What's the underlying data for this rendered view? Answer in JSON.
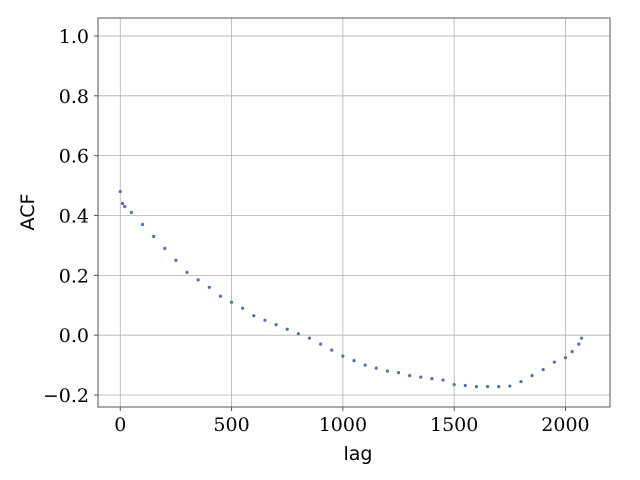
{
  "chart_data": {
    "type": "scatter",
    "title": "",
    "xlabel": "lag",
    "ylabel": "ACF",
    "xlim": [
      -100,
      2200
    ],
    "ylim": [
      -0.24,
      1.06
    ],
    "xticks": [
      0,
      500,
      1000,
      1500,
      2000
    ],
    "yticks": [
      -0.2,
      0.0,
      0.2,
      0.4,
      0.6,
      0.8,
      1.0
    ],
    "xtick_labels": [
      "0",
      "500",
      "1000",
      "1500",
      "2000"
    ],
    "ytick_labels": [
      "−0.2",
      "0.0",
      "0.2",
      "0.4",
      "0.6",
      "0.8",
      "1.0"
    ],
    "grid": true,
    "marker_color": "#4c72b0",
    "series": [
      {
        "x": [
          0,
          10,
          20,
          50,
          100,
          150,
          200,
          250,
          300,
          350,
          400,
          450,
          500,
          550,
          600,
          650,
          700,
          750,
          800,
          850,
          900,
          950,
          1000,
          1050,
          1100,
          1150,
          1200,
          1250,
          1300,
          1350,
          1400,
          1450,
          1500,
          1550,
          1600,
          1650,
          1700,
          1750,
          1800,
          1850,
          1900,
          1950,
          2000,
          2030,
          2060,
          2072
        ],
        "y": [
          0.48,
          0.44,
          0.43,
          0.41,
          0.37,
          0.33,
          0.29,
          0.25,
          0.21,
          0.185,
          0.16,
          0.13,
          0.11,
          0.09,
          0.065,
          0.05,
          0.035,
          0.02,
          0.005,
          -0.01,
          -0.03,
          -0.05,
          -0.07,
          -0.085,
          -0.1,
          -0.11,
          -0.12,
          -0.125,
          -0.135,
          -0.14,
          -0.145,
          -0.15,
          -0.165,
          -0.168,
          -0.172,
          -0.172,
          -0.172,
          -0.17,
          -0.155,
          -0.135,
          -0.115,
          -0.09,
          -0.075,
          -0.055,
          -0.03,
          -0.01
        ]
      }
    ]
  }
}
